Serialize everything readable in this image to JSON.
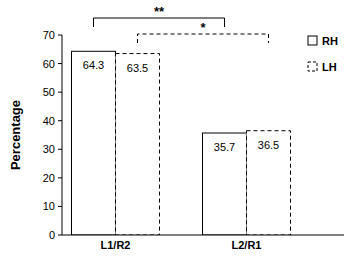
{
  "chart_data": {
    "type": "bar",
    "y_label": "Percentage",
    "categories": [
      "L1/R2",
      "L2/R1"
    ],
    "series": [
      {
        "name": "RH",
        "color": "#ffffff",
        "line_style": "solid",
        "values": [
          64.3,
          35.7
        ]
      },
      {
        "name": "LH",
        "color": "#ffffff",
        "line_style": "dashed",
        "values": [
          63.5,
          36.5
        ]
      }
    ],
    "annotations": [
      "**",
      "*"
    ],
    "ylim": [
      0,
      70
    ],
    "yticks": [
      0,
      10,
      20,
      30,
      40,
      50,
      60,
      70
    ],
    "grid": false,
    "legend": "upper right",
    "data_labels": true
  }
}
